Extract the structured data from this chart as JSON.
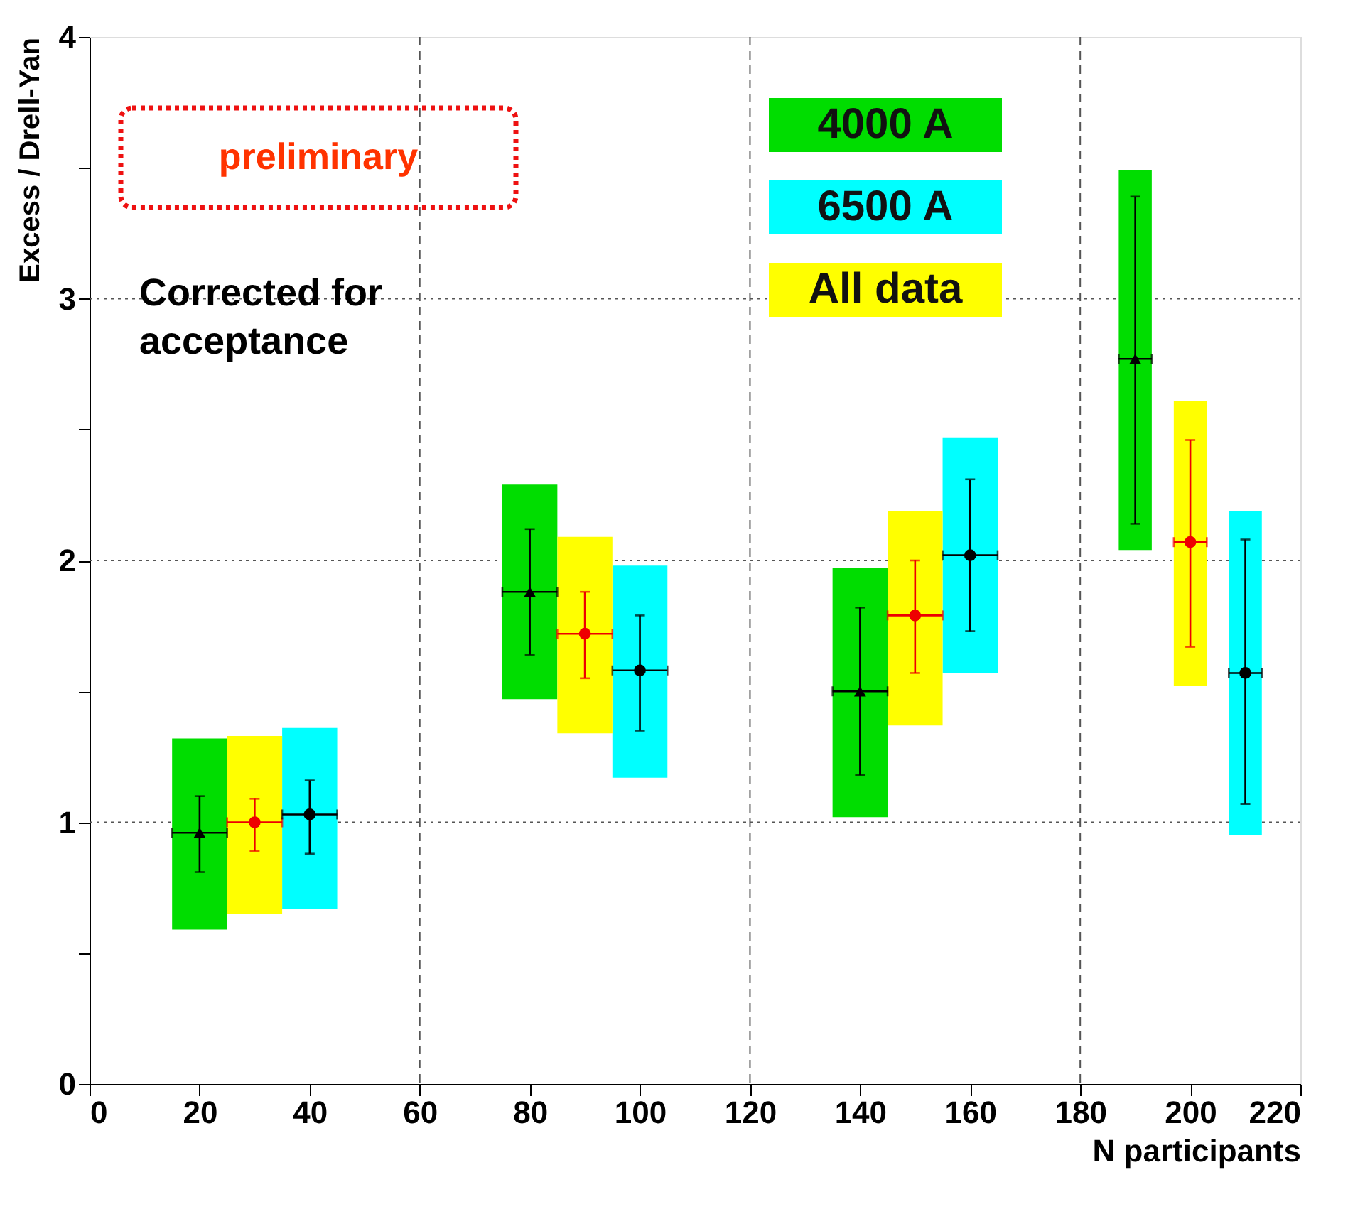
{
  "chart_data": {
    "type": "scatter",
    "xlabel": "N participants",
    "ylabel": "Excess / Drell-Yan",
    "annotations": [
      "preliminary",
      "Corrected for acceptance"
    ],
    "xlim": [
      0,
      220
    ],
    "xticks": [
      0,
      20,
      40,
      60,
      80,
      100,
      120,
      140,
      160,
      180,
      200,
      220
    ],
    "ylim": [
      0,
      4
    ],
    "yticks": [
      0,
      {
        "value": 0.5,
        "label": null
      },
      1,
      {
        "value": 1.5,
        "label": null
      },
      2,
      {
        "value": 2.5,
        "label": null
      },
      3,
      {
        "value": 3.5,
        "label": null
      },
      4
    ],
    "grid": false,
    "legend": "top right",
    "ref_lines": [
      {
        "axis": "x",
        "value": 60,
        "line_style": "dashed"
      },
      {
        "axis": "x",
        "value": 120,
        "line_style": "dashed"
      },
      {
        "axis": "x",
        "value": 180,
        "line_style": "dashed"
      },
      {
        "axis": "y",
        "value": 1,
        "line_style": "dotted"
      },
      {
        "axis": "y",
        "value": 2,
        "line_style": "dotted"
      },
      {
        "axis": "y",
        "value": 3,
        "line_style": "dotted"
      }
    ],
    "series": [
      {
        "name": "4000 A",
        "type": "bar",
        "color": "#00dd00",
        "x": [
          20,
          80,
          140,
          190
        ],
        "base": [
          0.59,
          1.47,
          1.02,
          2.04
        ],
        "values": [
          0.73,
          0.82,
          0.95,
          1.45
        ],
        "xerrors": [
          5,
          5,
          5,
          3
        ]
      },
      {
        "name": "6500 A",
        "type": "bar",
        "color": "#00ffff",
        "x": [
          40,
          100,
          160,
          210
        ],
        "base": [
          0.67,
          1.17,
          1.57,
          0.95
        ],
        "values": [
          0.69,
          0.81,
          0.9,
          1.24
        ],
        "xerrors": [
          5,
          5,
          5,
          3
        ]
      },
      {
        "name": "All data",
        "type": "bar",
        "color": "#ffff00",
        "x": [
          30,
          90,
          150,
          200
        ],
        "base": [
          0.65,
          1.34,
          1.37,
          1.52
        ],
        "values": [
          0.68,
          0.75,
          0.82,
          1.09
        ],
        "xerrors": [
          5,
          5,
          5,
          3
        ]
      },
      {
        "color": "#000000",
        "marker": "triangle",
        "x": [
          20,
          80,
          140,
          190
        ],
        "values": [
          0.96,
          1.88,
          1.5,
          2.77
        ],
        "errors": [
          [
            0.81,
            1.1
          ],
          [
            1.64,
            2.12
          ],
          [
            1.18,
            1.82
          ],
          [
            2.14,
            3.39
          ]
        ],
        "xerrors": [
          5,
          5,
          5,
          3
        ]
      },
      {
        "color": "#ee0000",
        "marker": "circle",
        "x": [
          30,
          90,
          150,
          200
        ],
        "values": [
          1.0,
          1.72,
          1.79,
          2.07
        ],
        "errors": [
          [
            0.89,
            1.09
          ],
          [
            1.55,
            1.88
          ],
          [
            1.57,
            2.0
          ],
          [
            1.67,
            2.46
          ]
        ],
        "xerrors": [
          5,
          5,
          5,
          3
        ]
      },
      {
        "color": "#000000",
        "marker": "circle",
        "x": [
          40,
          100,
          160,
          210
        ],
        "values": [
          1.03,
          1.58,
          2.02,
          1.57
        ],
        "errors": [
          [
            0.88,
            1.16
          ],
          [
            1.35,
            1.79
          ],
          [
            1.73,
            2.31
          ],
          [
            1.07,
            2.08
          ]
        ],
        "xerrors": [
          5,
          5,
          5,
          3
        ]
      }
    ]
  }
}
